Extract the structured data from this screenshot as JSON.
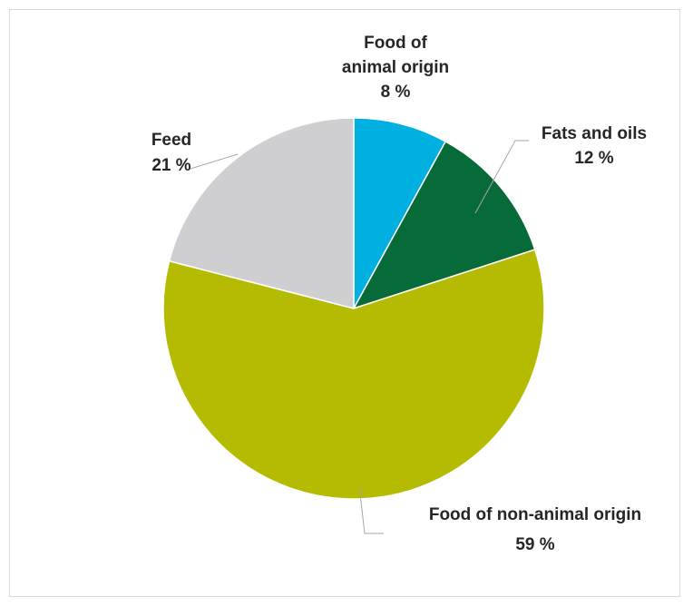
{
  "chart_data": {
    "type": "pie",
    "title": "",
    "start_angle_deg": 0,
    "direction": "clockwise",
    "legend": "none",
    "slices": [
      {
        "name_lines": [
          "Food of",
          "animal origin"
        ],
        "value_label": "8 %",
        "value": 8,
        "color": "#00b0e0"
      },
      {
        "name_lines": [
          "Fats and oils"
        ],
        "value_label": "12 %",
        "value": 12,
        "color": "#066b38"
      },
      {
        "name_lines": [
          "Food of non-animal origin"
        ],
        "value_label": "59 %",
        "value": 59,
        "color": "#b5bb00"
      },
      {
        "name_lines": [
          "Feed"
        ],
        "value_label": "21 %",
        "value": 21,
        "color": "#cfcfd1"
      }
    ]
  }
}
